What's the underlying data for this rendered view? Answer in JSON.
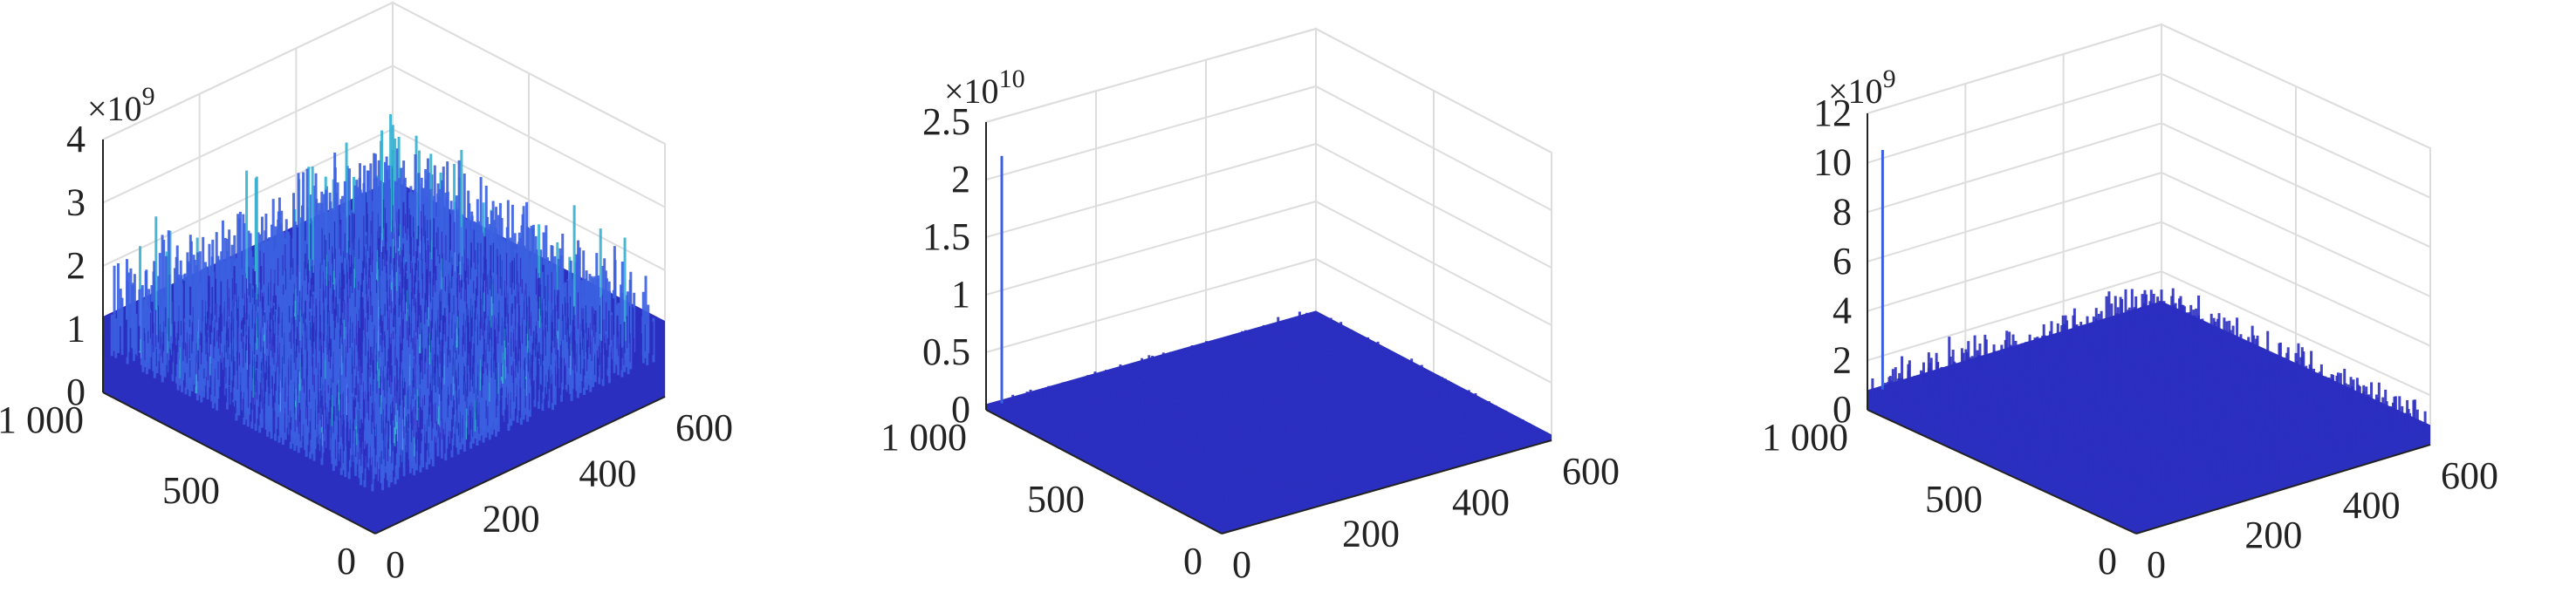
{
  "colors": {
    "surface_top": "#2b2fc0",
    "surface_mid": "#3b5fe0",
    "surface_high": "#33b0d0",
    "grid": "#dddddd",
    "axis": "#222222"
  },
  "chart_data": [
    {
      "type": "surface3d",
      "title": "",
      "z_exponent_label": "×10",
      "z_exponent": "9",
      "z_ticks": [
        "0",
        "1",
        "2",
        "3",
        "4"
      ],
      "zlim": [
        0,
        4
      ],
      "x_ticks": [
        "0",
        "500",
        "1 000"
      ],
      "y_ticks": [
        "0",
        "200",
        "400",
        "600"
      ],
      "xlim": [
        0,
        1000
      ],
      "ylim": [
        0,
        600
      ],
      "grid": true,
      "data_profile": {
        "description_values": "noisy surface, dense peaks",
        "baseline": 1.2,
        "noise_max": 2.4,
        "peak": {
          "x": 500,
          "y": 280,
          "z": 3.2
        }
      }
    },
    {
      "type": "surface3d",
      "title": "",
      "z_exponent_label": "×10",
      "z_exponent": "10",
      "z_ticks": [
        "0",
        "0.5",
        "1",
        "1.5",
        "2",
        "2.5"
      ],
      "zlim": [
        0,
        2.5
      ],
      "x_ticks": [
        "0",
        "500",
        "1 000"
      ],
      "y_ticks": [
        "0",
        "200",
        "400",
        "600"
      ],
      "xlim": [
        0,
        1000
      ],
      "ylim": [
        0,
        600
      ],
      "grid": true,
      "data_profile": {
        "baseline": 0.05,
        "noise_max": 0.1,
        "peak": {
          "x": 980,
          "y": 20,
          "z": 2.2
        }
      }
    },
    {
      "type": "surface3d",
      "title": "",
      "z_exponent_label": "×10",
      "z_exponent": "9",
      "z_ticks": [
        "0",
        "2",
        "4",
        "6",
        "8",
        "10",
        "12"
      ],
      "zlim": [
        0,
        12
      ],
      "x_ticks": [
        "0",
        "500",
        "1 000"
      ],
      "y_ticks": [
        "0",
        "200",
        "400",
        "600"
      ],
      "xlim": [
        0,
        1000
      ],
      "ylim": [
        0,
        600
      ],
      "grid": true,
      "data_profile": {
        "baseline": 0.8,
        "noise_max": 2.0,
        "peak": {
          "x": 980,
          "y": 20,
          "z": 10.5
        }
      }
    }
  ]
}
